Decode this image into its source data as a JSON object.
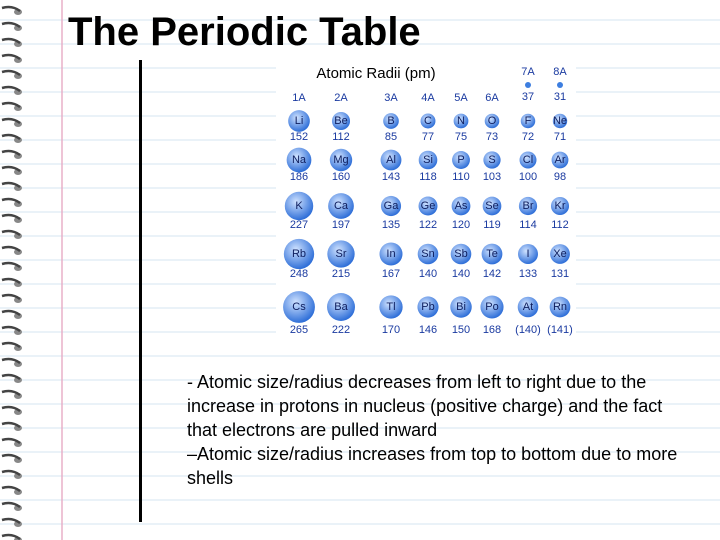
{
  "header": {
    "title": "The Periodic Table"
  },
  "figure": {
    "title": "Atomic Radii (pm)",
    "groups": [
      "1A",
      "2A",
      "3A",
      "4A",
      "5A",
      "6A",
      "7A",
      "8A"
    ],
    "period1": [
      "37",
      "31"
    ],
    "rows": [
      [
        {
          "symbol": "Li",
          "radius": "152"
        },
        {
          "symbol": "Be",
          "radius": "112"
        },
        {
          "symbol": "B",
          "radius": "85"
        },
        {
          "symbol": "C",
          "radius": "77"
        },
        {
          "symbol": "N",
          "radius": "75"
        },
        {
          "symbol": "O",
          "radius": "73"
        },
        {
          "symbol": "F",
          "radius": "72"
        },
        {
          "symbol": "Ne",
          "radius": "71"
        }
      ],
      [
        {
          "symbol": "Na",
          "radius": "186"
        },
        {
          "symbol": "Mg",
          "radius": "160"
        },
        {
          "symbol": "Al",
          "radius": "143"
        },
        {
          "symbol": "Si",
          "radius": "118"
        },
        {
          "symbol": "P",
          "radius": "110"
        },
        {
          "symbol": "S",
          "radius": "103"
        },
        {
          "symbol": "Cl",
          "radius": "100"
        },
        {
          "symbol": "Ar",
          "radius": "98"
        }
      ],
      [
        {
          "symbol": "K",
          "radius": "227"
        },
        {
          "symbol": "Ca",
          "radius": "197"
        },
        {
          "symbol": "Ga",
          "radius": "135"
        },
        {
          "symbol": "Ge",
          "radius": "122"
        },
        {
          "symbol": "As",
          "radius": "120"
        },
        {
          "symbol": "Se",
          "radius": "119"
        },
        {
          "symbol": "Br",
          "radius": "114"
        },
        {
          "symbol": "Kr",
          "radius": "112"
        }
      ],
      [
        {
          "symbol": "Rb",
          "radius": "248"
        },
        {
          "symbol": "Sr",
          "radius": "215"
        },
        {
          "symbol": "In",
          "radius": "167"
        },
        {
          "symbol": "Sn",
          "radius": "140"
        },
        {
          "symbol": "Sb",
          "radius": "140"
        },
        {
          "symbol": "Te",
          "radius": "142"
        },
        {
          "symbol": "I",
          "radius": "133"
        },
        {
          "symbol": "Xe",
          "radius": "131"
        }
      ],
      [
        {
          "symbol": "Cs",
          "radius": "265"
        },
        {
          "symbol": "Ba",
          "radius": "222"
        },
        {
          "symbol": "Tl",
          "radius": "170"
        },
        {
          "symbol": "Pb",
          "radius": "146"
        },
        {
          "symbol": "Bi",
          "radius": "150"
        },
        {
          "symbol": "Po",
          "radius": "168"
        },
        {
          "symbol": "At",
          "radius": "(140)"
        },
        {
          "symbol": "Rn",
          "radius": "(141)"
        }
      ]
    ]
  },
  "notes": [
    "- Atomic size/radius decreases from left to right due to the increase in protons in nucleus (positive charge) and the fact that electrons are pulled inward",
    "–Atomic size/radius increases from top to bottom due to more shells"
  ]
}
